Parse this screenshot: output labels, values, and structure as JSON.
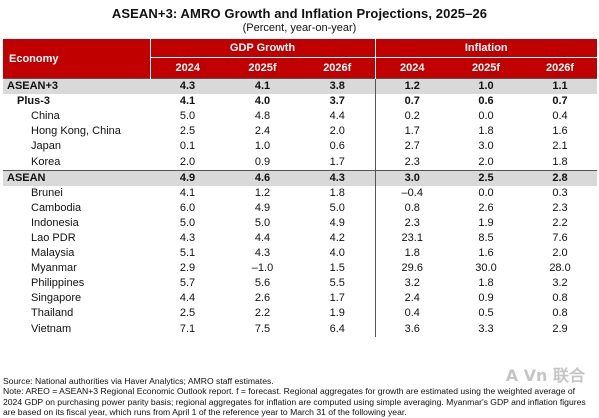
{
  "header": {
    "title": "ASEAN+3: AMRO Growth and Inflation Projections, 2025–26",
    "subtitle": "(Percent, year-on-year)"
  },
  "table": {
    "economy_label": "Economy",
    "group_labels": [
      "GDP Growth",
      "Inflation"
    ],
    "years": [
      "2024",
      "2025f",
      "2026f",
      "2024",
      "2025f",
      "2026f"
    ],
    "rows": [
      {
        "name": "ASEAN+3",
        "level": 1,
        "style": "agg-shade",
        "values": [
          "4.3",
          "4.1",
          "3.8",
          "1.2",
          "1.0",
          "1.1"
        ]
      },
      {
        "name": "Plus-3",
        "level": 2,
        "style": "bold",
        "values": [
          "4.1",
          "4.0",
          "3.7",
          "0.7",
          "0.6",
          "0.7"
        ]
      },
      {
        "name": "China",
        "level": 3,
        "style": "",
        "values": [
          "5.0",
          "4.8",
          "4.4",
          "0.2",
          "0.0",
          "0.4"
        ]
      },
      {
        "name": "Hong Kong, China",
        "level": 3,
        "style": "",
        "values": [
          "2.5",
          "2.4",
          "2.0",
          "1.7",
          "1.8",
          "1.6"
        ]
      },
      {
        "name": "Japan",
        "level": 3,
        "style": "",
        "values": [
          "0.1",
          "1.0",
          "0.6",
          "2.7",
          "3.0",
          "2.1"
        ]
      },
      {
        "name": "Korea",
        "level": 3,
        "style": "",
        "values": [
          "2.0",
          "0.9",
          "1.7",
          "2.3",
          "2.0",
          "1.8"
        ]
      },
      {
        "name": "ASEAN",
        "level": 1,
        "style": "agg-shade",
        "values": [
          "4.9",
          "4.6",
          "4.3",
          "3.0",
          "2.5",
          "2.8"
        ]
      },
      {
        "name": "Brunei",
        "level": 3,
        "style": "",
        "values": [
          "4.1",
          "1.2",
          "1.8",
          "–0.4",
          "0.0",
          "0.3"
        ]
      },
      {
        "name": "Cambodia",
        "level": 3,
        "style": "",
        "values": [
          "6.0",
          "4.9",
          "5.0",
          "0.8",
          "2.6",
          "2.3"
        ]
      },
      {
        "name": "Indonesia",
        "level": 3,
        "style": "",
        "values": [
          "5.0",
          "5.0",
          "4.9",
          "2.3",
          "1.9",
          "2.2"
        ]
      },
      {
        "name": "Lao PDR",
        "level": 3,
        "style": "",
        "values": [
          "4.3",
          "4.4",
          "4.2",
          "23.1",
          "8.5",
          "7.6"
        ]
      },
      {
        "name": "Malaysia",
        "level": 3,
        "style": "",
        "values": [
          "5.1",
          "4.3",
          "4.0",
          "1.8",
          "1.6",
          "2.0"
        ]
      },
      {
        "name": "Myanmar",
        "level": 3,
        "style": "",
        "values": [
          "2.9",
          "–1.0",
          "1.5",
          "29.6",
          "30.0",
          "28.0"
        ]
      },
      {
        "name": "Philippines",
        "level": 3,
        "style": "",
        "values": [
          "5.7",
          "5.6",
          "5.5",
          "3.2",
          "1.8",
          "3.2"
        ]
      },
      {
        "name": "Singapore",
        "level": 3,
        "style": "",
        "values": [
          "4.4",
          "2.6",
          "1.7",
          "2.4",
          "0.9",
          "0.8"
        ]
      },
      {
        "name": "Thailand",
        "level": 3,
        "style": "",
        "values": [
          "2.5",
          "2.2",
          "1.9",
          "0.4",
          "0.5",
          "0.8"
        ]
      },
      {
        "name": "Vietnam",
        "level": 3,
        "style": "",
        "values": [
          "7.1",
          "7.5",
          "6.4",
          "3.6",
          "3.3",
          "2.9"
        ]
      }
    ]
  },
  "notes": {
    "source": "Source: National authorities via Haver Analytics; AMRO staff estimates.",
    "note": "Note: AREO = ASEAN+3 Regional Economic Outlook report. f = forecast. Regional aggregates for growth are estimated using the weighted average of 2024 GDP on purchasing power parity basis; regional aggregates for inflation are computed using simple averaging. Myanmar's GDP and inflation figures are based on its fiscal year, which runs from April 1 of the reference year to March 31 of the following year."
  },
  "watermark": "A Vn 联合"
}
